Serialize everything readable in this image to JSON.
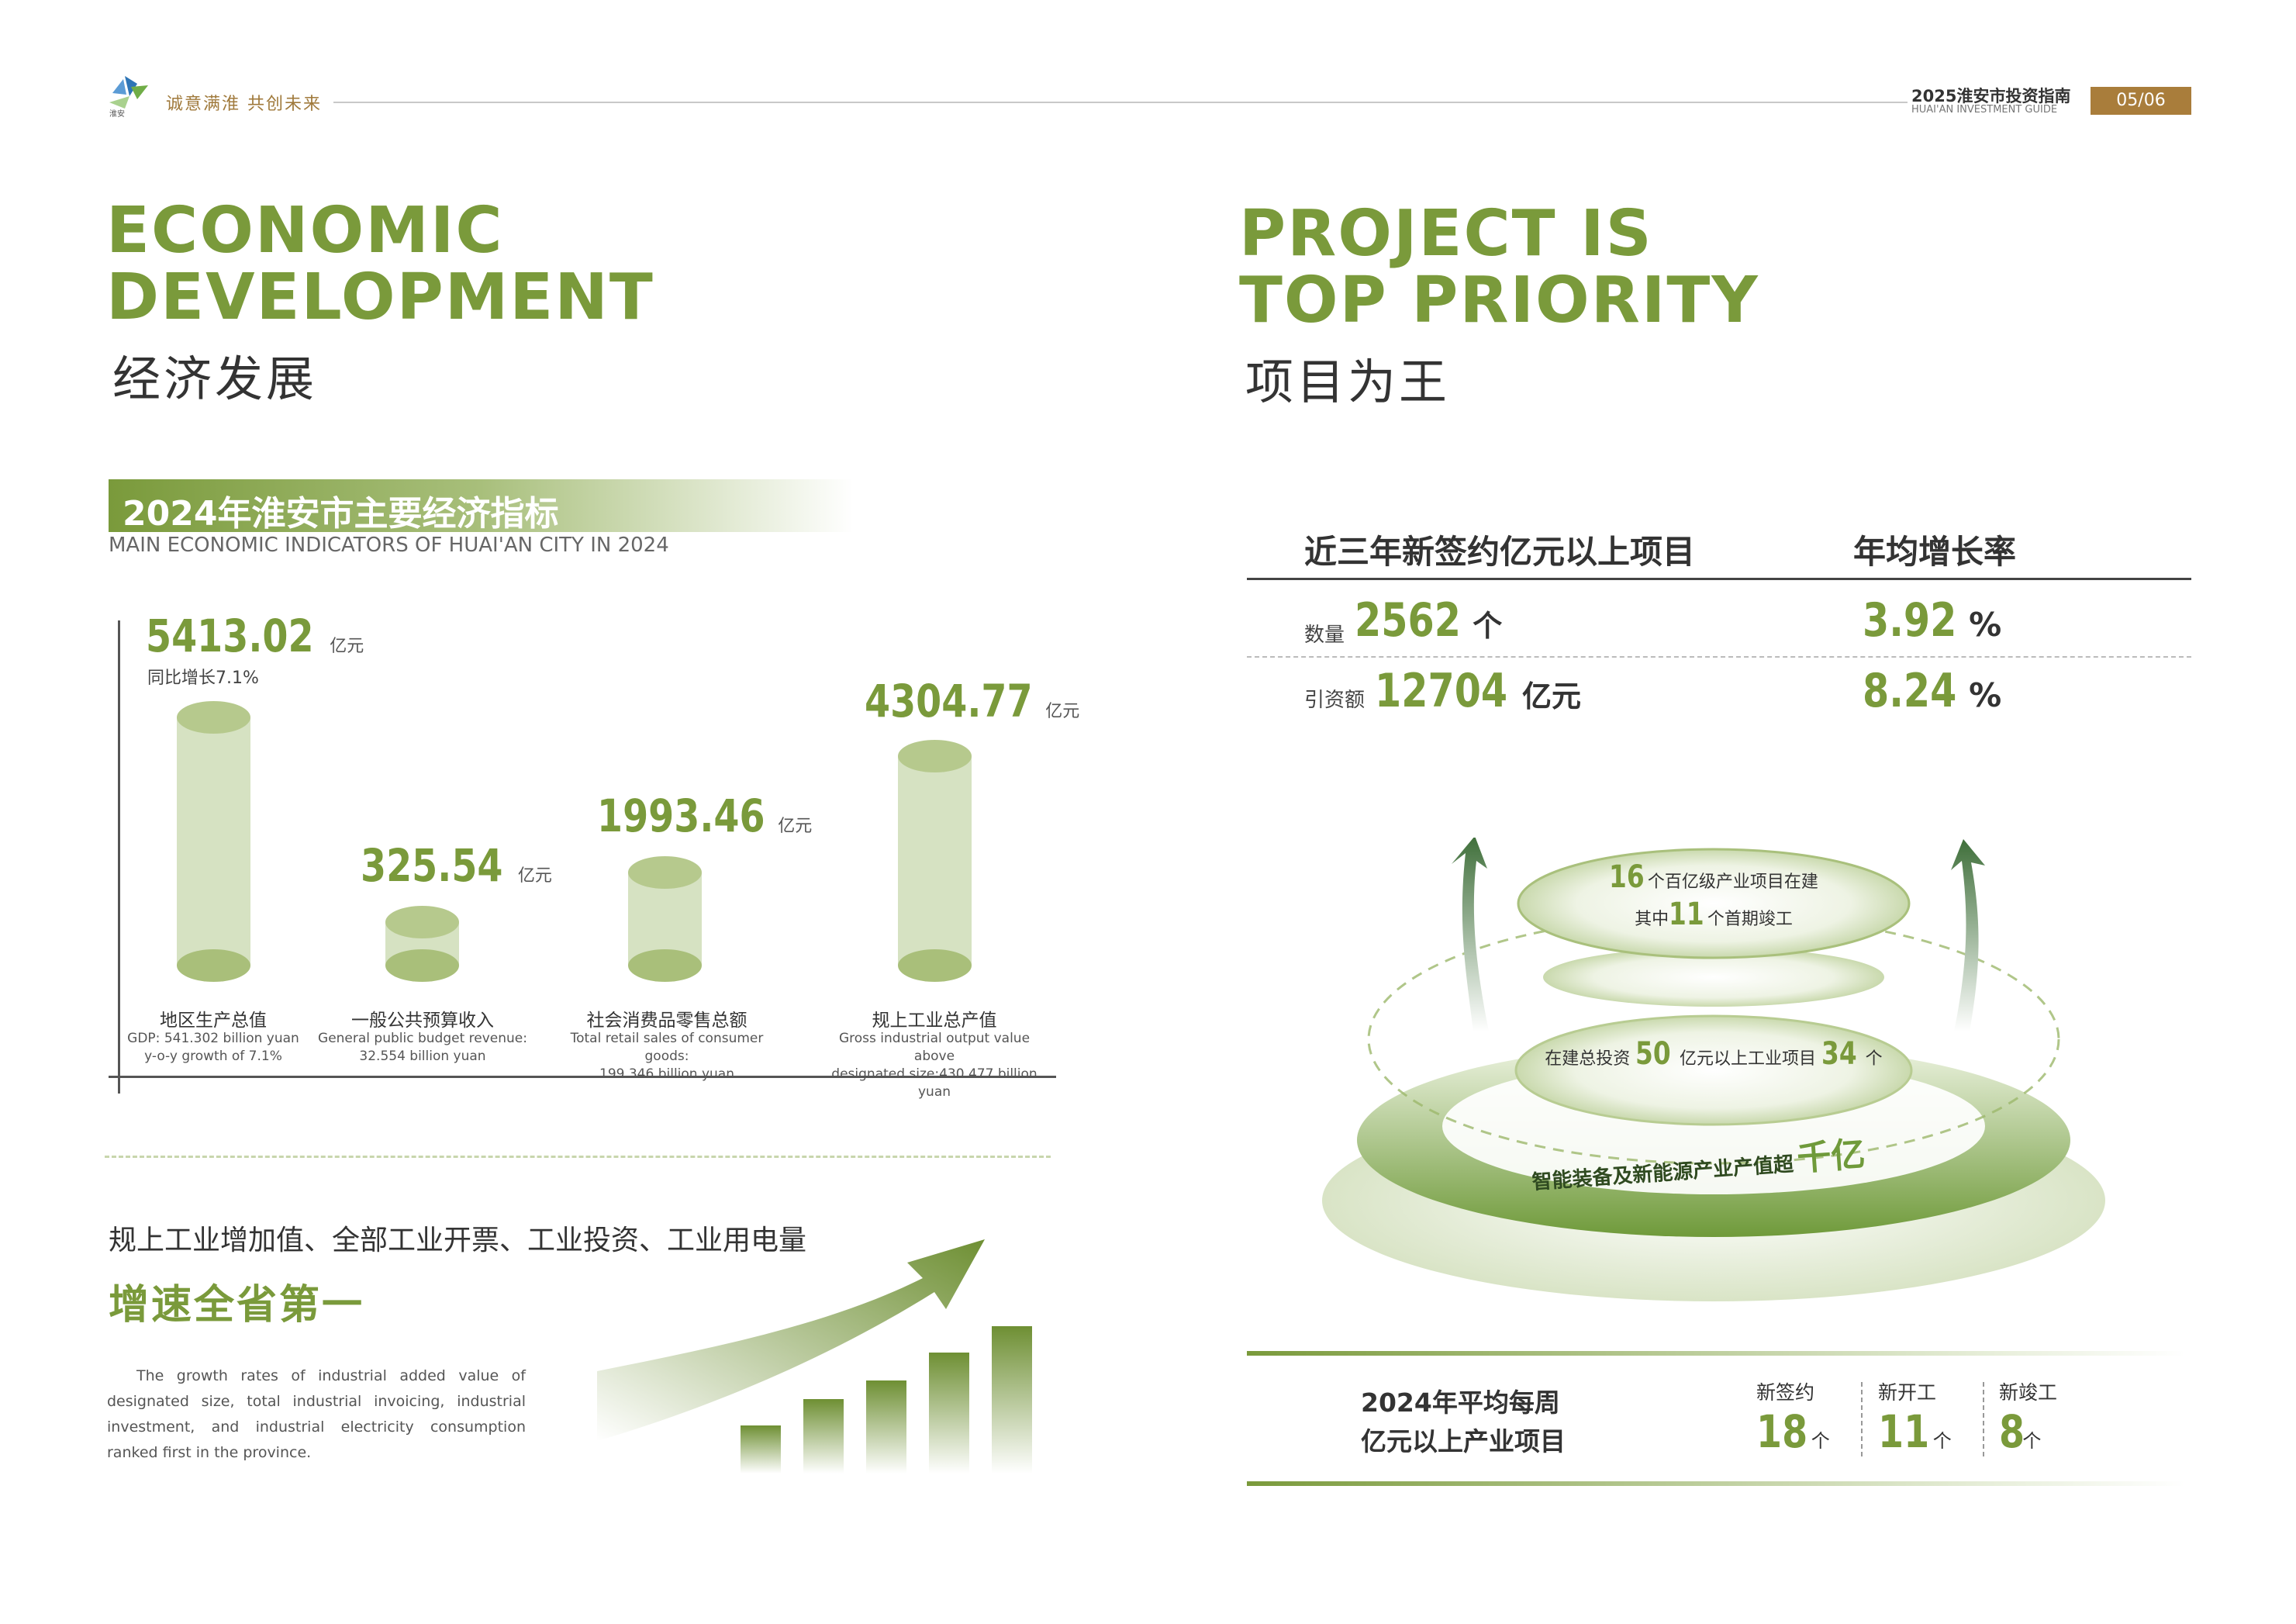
{
  "header": {
    "slogan": "诚意满淮 共创未来",
    "guide_title": "2025淮安市投资指南",
    "guide_subtitle": "HUAI'AN INVESTMENT GUIDE",
    "page": "05/06"
  },
  "left": {
    "title_en_1": "ECONOMIC",
    "title_en_2": "DEVELOPMENT",
    "title_cn": "经济发展",
    "banner_cn": "2024年淮安市主要经济指标",
    "banner_en": "MAIN ECONOMIC INDICATORS OF HUAI'AN CITY IN 2024",
    "chart_unit": "亿元",
    "gdp_growth_note": "同比增长7.1%",
    "indicators": [
      {
        "value": "5413.02",
        "label": "地区生产总值",
        "desc1": "GDP: 541.302 billion yuan",
        "desc2": "y-o-y growth of 7.1%"
      },
      {
        "value": "325.54",
        "label": "一般公共预算收入",
        "desc1": "General public budget revenue:",
        "desc2": "32.554 billion yuan"
      },
      {
        "value": "1993.46",
        "label": "社会消费品零售总额",
        "desc1": "Total retail sales of consumer goods:",
        "desc2": "199.346 billion yuan"
      },
      {
        "value": "4304.77",
        "label": "规上工业总产值",
        "desc1": "Gross industrial output value above",
        "desc2": "designated size:430.477 billion yuan"
      }
    ],
    "growth_heading": "规上工业增加值、全部工业开票、工业投资、工业用电量",
    "growth_highlight": "增速全省第一",
    "growth_en": "The growth rates of industrial added value of designated size, total industrial invoicing, industrial investment, and industrial electricity consumption ranked first in the province."
  },
  "right": {
    "title_en_1": "PROJECT IS",
    "title_en_2": "TOP PRIORITY",
    "title_cn": "项目为王",
    "table_head_1": "近三年新签约亿元以上项目",
    "table_head_2": "年均增长率",
    "row1_label": "数量",
    "row1_value": "2562",
    "row1_unit": "个",
    "row1_rate": "3.92",
    "row2_label": "引资额",
    "row2_value": "12704",
    "row2_unit": "亿元",
    "row2_rate": "8.24",
    "percent": "%",
    "disc1_num1": "16",
    "disc1_text1": "个百亿级产业项目在建",
    "disc1_text2a": "其中",
    "disc1_num2": "11",
    "disc1_text2b": "个首期竣工",
    "disc3_text_a": "在建总投资",
    "disc3_num1": "50",
    "disc3_text_b": "亿元以上工业项目",
    "disc3_num2": "34",
    "disc3_text_c": "个",
    "ring_text": "智能装备及新能源产业产值超",
    "ring_highlight": "千亿",
    "weekly_title_1": "2024年平均每周",
    "weekly_title_2": "亿元以上产业项目",
    "weekly_unit": "个",
    "weekly": [
      {
        "label": "新签约",
        "value": "18"
      },
      {
        "label": "新开工",
        "value": "11"
      },
      {
        "label": "新竣工",
        "value": "8"
      }
    ]
  },
  "chart_data": {
    "type": "bar",
    "title": "2024年淮安市主要经济指标",
    "categories": [
      "地区生产总值",
      "一般公共预算收入",
      "社会消费品零售总额",
      "规上工业总产值"
    ],
    "values": [
      5413.02,
      325.54,
      1993.46,
      4304.77
    ],
    "ylabel": "亿元"
  }
}
